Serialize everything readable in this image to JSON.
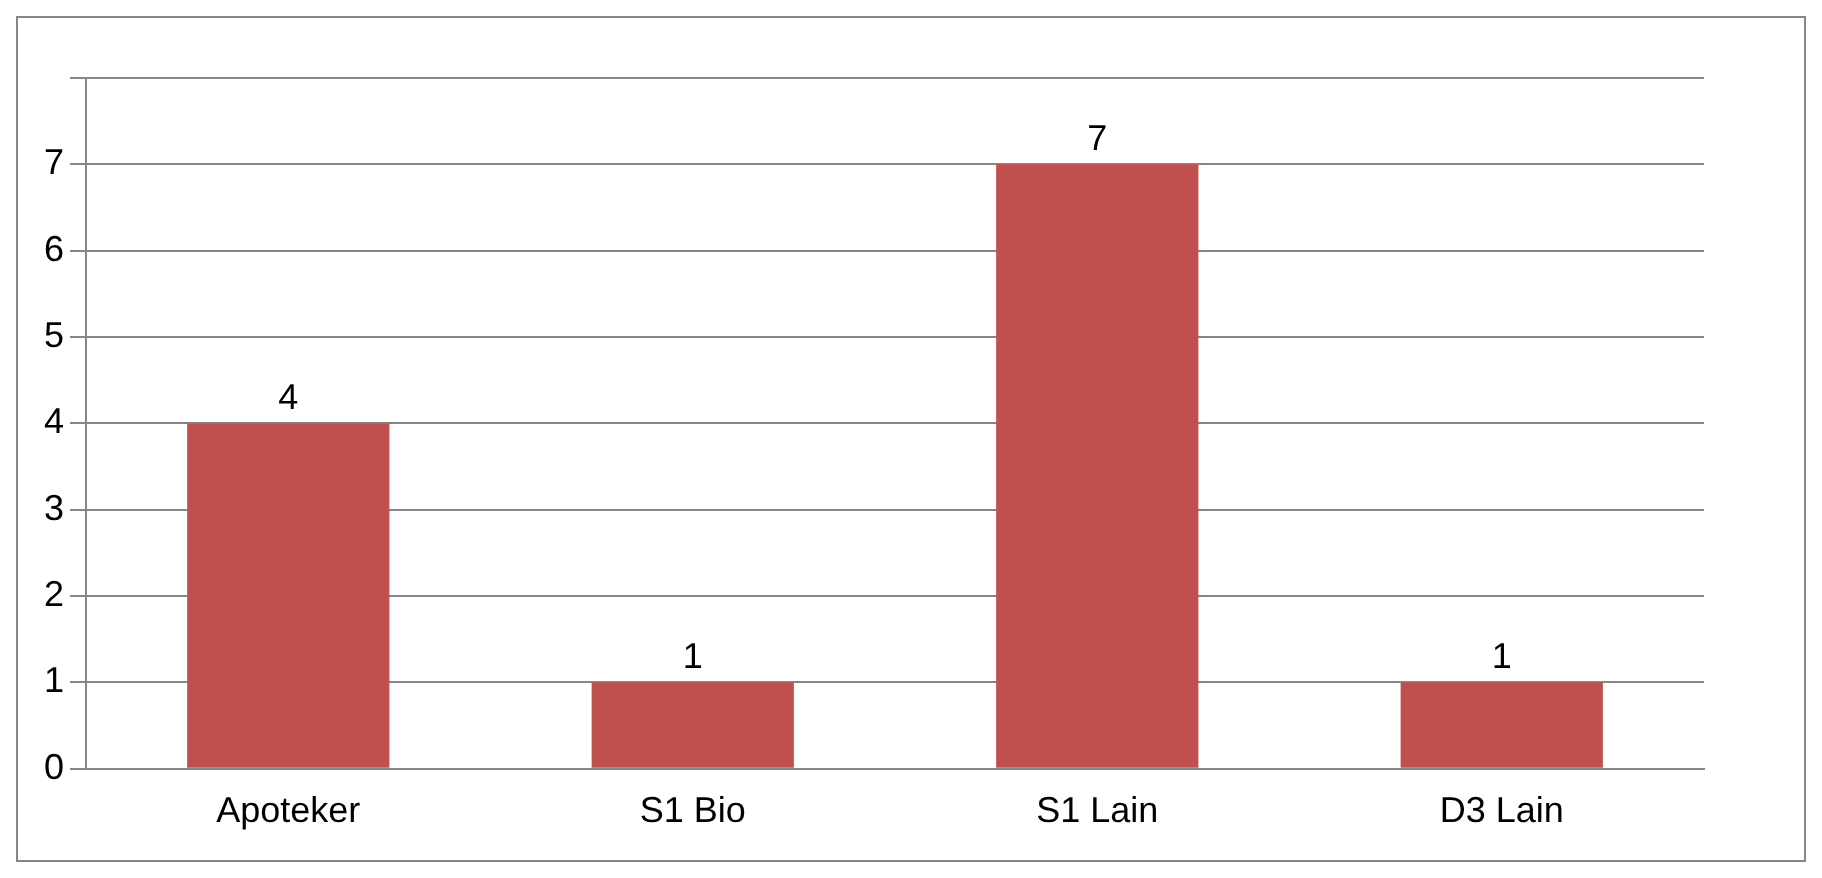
{
  "chart_data": {
    "type": "bar",
    "categories": [
      "Apoteker",
      "S1 Bio",
      "S1 Lain",
      "D3 Lain"
    ],
    "values": [
      4,
      1,
      7,
      1
    ],
    "color": "#c0504d",
    "ylim": [
      0,
      8
    ],
    "yticks": [
      0,
      1,
      2,
      3,
      4,
      5,
      6,
      7,
      {
        "value": 8,
        "label": null
      }
    ],
    "grid": "y",
    "data_labels": true,
    "legend": false
  }
}
